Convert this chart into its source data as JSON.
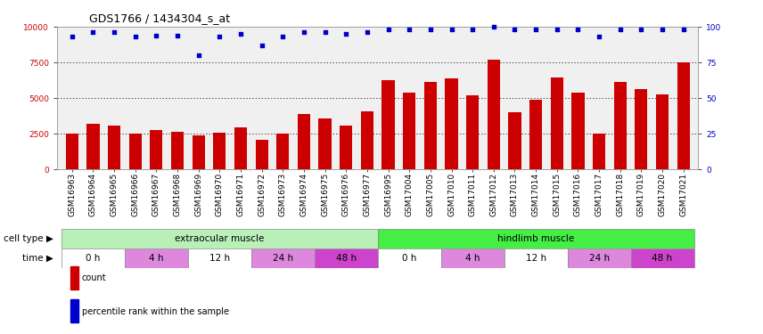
{
  "title": "GDS1766 / 1434304_s_at",
  "samples": [
    "GSM16963",
    "GSM16964",
    "GSM16965",
    "GSM16966",
    "GSM16967",
    "GSM16968",
    "GSM16969",
    "GSM16970",
    "GSM16971",
    "GSM16972",
    "GSM16973",
    "GSM16974",
    "GSM16975",
    "GSM16976",
    "GSM16977",
    "GSM16995",
    "GSM17004",
    "GSM17005",
    "GSM17010",
    "GSM17011",
    "GSM17012",
    "GSM17013",
    "GSM17014",
    "GSM17015",
    "GSM17016",
    "GSM17017",
    "GSM17018",
    "GSM17019",
    "GSM17020",
    "GSM17021"
  ],
  "counts": [
    2500,
    3200,
    3050,
    2500,
    2750,
    2600,
    2400,
    2550,
    2950,
    2050,
    2500,
    3850,
    3550,
    3050,
    4050,
    6250,
    5350,
    6150,
    6400,
    5200,
    7700,
    4000,
    4850,
    6450,
    5350,
    2500,
    6100,
    5600,
    5250,
    7500
  ],
  "percentile_ranks": [
    93,
    96,
    96,
    93,
    94,
    94,
    80,
    93,
    95,
    87,
    93,
    96,
    96,
    95,
    96,
    98,
    98,
    98,
    98,
    98,
    100,
    98,
    98,
    98,
    98,
    93,
    98,
    98,
    98,
    98
  ],
  "bar_color": "#cc0000",
  "dot_color": "#0000cc",
  "ylim_left": [
    0,
    10000
  ],
  "ylim_right": [
    0,
    100
  ],
  "yticks_left": [
    0,
    2500,
    5000,
    7500,
    10000
  ],
  "yticks_right": [
    0,
    25,
    50,
    75,
    100
  ],
  "cell_type_groups": [
    {
      "label": "extraocular muscle",
      "start": 0,
      "end": 15,
      "color": "#b8f0b8"
    },
    {
      "label": "hindlimb muscle",
      "start": 15,
      "end": 30,
      "color": "#44ee44"
    }
  ],
  "time_groups": [
    {
      "label": "0 h",
      "start": 0,
      "end": 3,
      "color": "#ffffff"
    },
    {
      "label": "4 h",
      "start": 3,
      "end": 6,
      "color": "#dd88dd"
    },
    {
      "label": "12 h",
      "start": 6,
      "end": 9,
      "color": "#ffffff"
    },
    {
      "label": "24 h",
      "start": 9,
      "end": 12,
      "color": "#dd88dd"
    },
    {
      "label": "48 h",
      "start": 12,
      "end": 15,
      "color": "#cc44cc"
    },
    {
      "label": "0 h",
      "start": 15,
      "end": 18,
      "color": "#ffffff"
    },
    {
      "label": "4 h",
      "start": 18,
      "end": 21,
      "color": "#dd88dd"
    },
    {
      "label": "12 h",
      "start": 21,
      "end": 24,
      "color": "#ffffff"
    },
    {
      "label": "24 h",
      "start": 24,
      "end": 27,
      "color": "#dd88dd"
    },
    {
      "label": "48 h",
      "start": 27,
      "end": 30,
      "color": "#cc44cc"
    }
  ],
  "legend_items": [
    {
      "label": "count",
      "color": "#cc0000"
    },
    {
      "label": "percentile rank within the sample",
      "color": "#0000cc"
    }
  ],
  "background_color": "#f0f0f0",
  "grid_color": "#000000",
  "title_fontsize": 9,
  "tick_fontsize": 6.5,
  "label_fontsize": 7.5,
  "annot_fontsize": 7.5
}
